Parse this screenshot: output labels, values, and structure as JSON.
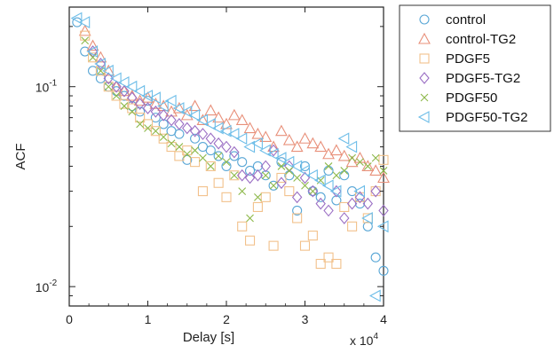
{
  "chart_data": {
    "type": "scatter",
    "xlabel": "Delay [s]",
    "ylabel": "ACF",
    "x_multiplier_label": "x 10",
    "x_multiplier_exponent": "4",
    "xlim": [
      0,
      40000
    ],
    "ylim": [
      0.008,
      0.25
    ],
    "yscale": "log",
    "grid": false,
    "legend_position": "outside-right",
    "x_ticks": [
      {
        "value": 0,
        "label": "0"
      },
      {
        "value": 10000,
        "label": "1"
      },
      {
        "value": 20000,
        "label": "2"
      },
      {
        "value": 30000,
        "label": "3"
      },
      {
        "value": 40000,
        "label": "4"
      }
    ],
    "y_ticks": [
      {
        "value": 0.1,
        "base": "10",
        "exp": "-1"
      },
      {
        "value": 0.01,
        "base": "10",
        "exp": "-2"
      }
    ],
    "series": [
      {
        "name": "control",
        "marker": "circle",
        "color": "#5aa7d6",
        "x": [
          1000,
          2000,
          3000,
          4000,
          5000,
          6000,
          7000,
          8000,
          9000,
          10000,
          11000,
          12000,
          13000,
          14000,
          15000,
          16000,
          17000,
          18000,
          19000,
          20000,
          21000,
          22000,
          23000,
          24000,
          25000,
          26000,
          27000,
          28000,
          29000,
          30000,
          31000,
          32000,
          33000,
          34000,
          35000,
          36000,
          37000,
          38000,
          39000,
          40000
        ],
        "y": [
          0.21,
          0.15,
          0.12,
          0.11,
          0.1,
          0.095,
          0.09,
          0.08,
          0.075,
          0.085,
          0.07,
          0.065,
          0.06,
          0.058,
          0.043,
          0.055,
          0.05,
          0.048,
          0.045,
          0.04,
          0.045,
          0.042,
          0.038,
          0.04,
          0.036,
          0.032,
          0.042,
          0.036,
          0.024,
          0.04,
          0.03,
          0.028,
          0.038,
          0.027,
          0.036,
          0.03,
          0.026,
          0.02,
          0.014,
          0.012
        ]
      },
      {
        "name": "control-TG2",
        "marker": "triangle-up",
        "color": "#e8907a",
        "x": [
          2000,
          3000,
          4000,
          5000,
          6000,
          7000,
          8000,
          9000,
          10000,
          11000,
          12000,
          13000,
          14000,
          15000,
          16000,
          17000,
          18000,
          19000,
          20000,
          21000,
          22000,
          23000,
          24000,
          25000,
          26000,
          27000,
          28000,
          29000,
          30000,
          31000,
          32000,
          33000,
          34000,
          35000,
          36000,
          37000,
          38000,
          39000,
          40000
        ],
        "y": [
          0.19,
          0.16,
          0.14,
          0.12,
          0.1,
          0.095,
          0.09,
          0.085,
          0.088,
          0.082,
          0.08,
          0.075,
          0.078,
          0.072,
          0.08,
          0.068,
          0.076,
          0.07,
          0.065,
          0.072,
          0.068,
          0.062,
          0.058,
          0.056,
          0.05,
          0.06,
          0.054,
          0.05,
          0.055,
          0.052,
          0.05,
          0.046,
          0.048,
          0.045,
          0.042,
          0.044,
          0.04,
          0.038,
          0.035
        ]
      },
      {
        "name": "PDGF5",
        "marker": "square",
        "color": "#f2c18b",
        "x": [
          2000,
          3000,
          4000,
          5000,
          6000,
          7000,
          8000,
          9000,
          10000,
          11000,
          12000,
          13000,
          14000,
          15000,
          16000,
          17000,
          18000,
          19000,
          20000,
          21000,
          22000,
          23000,
          24000,
          25000,
          26000,
          27000,
          28000,
          29000,
          30000,
          31000,
          32000,
          33000,
          34000,
          35000,
          36000,
          37000,
          38000,
          39000,
          40000
        ],
        "y": [
          0.18,
          0.14,
          0.12,
          0.1,
          0.09,
          0.082,
          0.078,
          0.07,
          0.065,
          0.06,
          0.055,
          0.05,
          0.045,
          0.048,
          0.042,
          0.03,
          0.04,
          0.033,
          0.028,
          0.036,
          0.02,
          0.017,
          0.025,
          0.028,
          0.016,
          0.035,
          0.03,
          0.022,
          0.016,
          0.018,
          0.013,
          0.014,
          0.013,
          0.025,
          0.02,
          0.028,
          0.022,
          0.03,
          0.043
        ]
      },
      {
        "name": "PDGF5-TG2",
        "marker": "diamond",
        "color": "#9b6fc4",
        "x": [
          3000,
          4000,
          5000,
          6000,
          7000,
          8000,
          9000,
          10000,
          11000,
          12000,
          13000,
          14000,
          15000,
          16000,
          17000,
          18000,
          19000,
          20000,
          21000,
          22000,
          23000,
          24000,
          25000,
          26000,
          27000,
          28000,
          29000,
          30000,
          31000,
          32000,
          33000,
          34000,
          35000,
          36000,
          37000,
          38000,
          39000,
          40000
        ],
        "y": [
          0.15,
          0.13,
          0.11,
          0.1,
          0.095,
          0.088,
          0.082,
          0.078,
          0.075,
          0.072,
          0.068,
          0.065,
          0.062,
          0.06,
          0.058,
          0.055,
          0.052,
          0.05,
          0.047,
          0.036,
          0.035,
          0.036,
          0.04,
          0.048,
          0.033,
          0.04,
          0.028,
          0.035,
          0.03,
          0.026,
          0.024,
          0.03,
          0.022,
          0.026,
          0.028,
          0.026,
          0.03,
          0.024
        ]
      },
      {
        "name": "PDGF50",
        "marker": "x",
        "color": "#8db84a",
        "x": [
          2000,
          3000,
          4000,
          5000,
          6000,
          7000,
          8000,
          9000,
          10000,
          11000,
          12000,
          13000,
          14000,
          15000,
          16000,
          17000,
          18000,
          19000,
          20000,
          21000,
          22000,
          23000,
          24000,
          25000,
          26000,
          27000,
          28000,
          29000,
          30000,
          31000,
          32000,
          33000,
          34000,
          35000,
          36000,
          37000,
          38000,
          39000,
          40000
        ],
        "y": [
          0.17,
          0.14,
          0.12,
          0.1,
          0.09,
          0.08,
          0.075,
          0.065,
          0.062,
          0.06,
          0.056,
          0.052,
          0.05,
          0.046,
          0.048,
          0.044,
          0.04,
          0.045,
          0.042,
          0.036,
          0.03,
          0.022,
          0.028,
          0.036,
          0.032,
          0.04,
          0.038,
          0.035,
          0.032,
          0.03,
          0.034,
          0.04,
          0.036,
          0.038,
          0.044,
          0.042,
          0.04,
          0.044,
          0.038
        ]
      },
      {
        "name": "PDGF50-TG2",
        "marker": "triangle-left",
        "color": "#6dbde8",
        "x": [
          1000,
          2000,
          3000,
          4000,
          5000,
          6000,
          7000,
          8000,
          9000,
          10000,
          11000,
          12000,
          13000,
          14000,
          15000,
          16000,
          17000,
          18000,
          19000,
          20000,
          21000,
          22000,
          23000,
          24000,
          25000,
          26000,
          27000,
          28000,
          29000,
          30000,
          31000,
          32000,
          33000,
          34000,
          35000,
          36000,
          37000,
          38000,
          39000,
          40000
        ],
        "y": [
          0.22,
          0.21,
          0.15,
          0.13,
          0.12,
          0.11,
          0.105,
          0.1,
          0.095,
          0.09,
          0.088,
          0.08,
          0.085,
          0.078,
          0.075,
          0.072,
          0.068,
          0.065,
          0.062,
          0.06,
          0.058,
          0.055,
          0.05,
          0.052,
          0.048,
          0.046,
          0.044,
          0.042,
          0.04,
          0.038,
          0.036,
          0.034,
          0.032,
          0.03,
          0.055,
          0.05,
          0.03,
          0.022,
          0.009,
          0.02
        ]
      }
    ]
  }
}
